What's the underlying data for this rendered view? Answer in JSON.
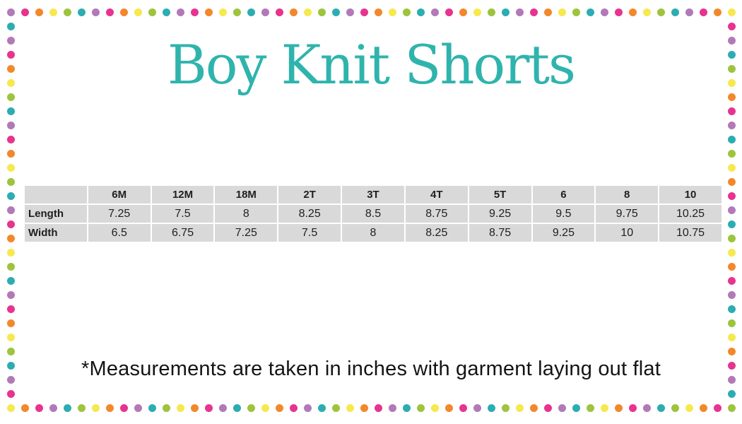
{
  "page": {
    "title": "Boy Knit Shorts",
    "footnote": "*Measurements are taken in inches with garment laying out flat"
  },
  "colors": {
    "title_text": "#2fb4ad",
    "table_cell_bg": "#d9d9d9",
    "table_grid": "#ffffff",
    "table_text": "#1f1f1f",
    "footnote_text": "#141414"
  },
  "border_dots": {
    "palette": {
      "purple": "#b279b8",
      "pink": "#e8338f",
      "orange": "#f2882b",
      "yellow": "#f5e94e",
      "green": "#9dc43c",
      "teal": "#2cadb2"
    },
    "cycle": [
      "purple",
      "pink",
      "orange",
      "yellow",
      "green",
      "teal"
    ]
  },
  "chart_data": {
    "type": "table",
    "title": "Boy Knit Shorts",
    "columns": [
      "",
      "6M",
      "12M",
      "18M",
      "2T",
      "3T",
      "4T",
      "5T",
      "6",
      "8",
      "10"
    ],
    "rows": [
      {
        "label": "Length",
        "values": [
          "7.25",
          "7.5",
          "8",
          "8.25",
          "8.5",
          "8.75",
          "9.25",
          "9.5",
          "9.75",
          "10.25"
        ]
      },
      {
        "label": "Width",
        "values": [
          "6.5",
          "6.75",
          "7.25",
          "7.5",
          "8",
          "8.25",
          "8.75",
          "9.25",
          "10",
          "10.75"
        ]
      }
    ],
    "units": "inches"
  }
}
